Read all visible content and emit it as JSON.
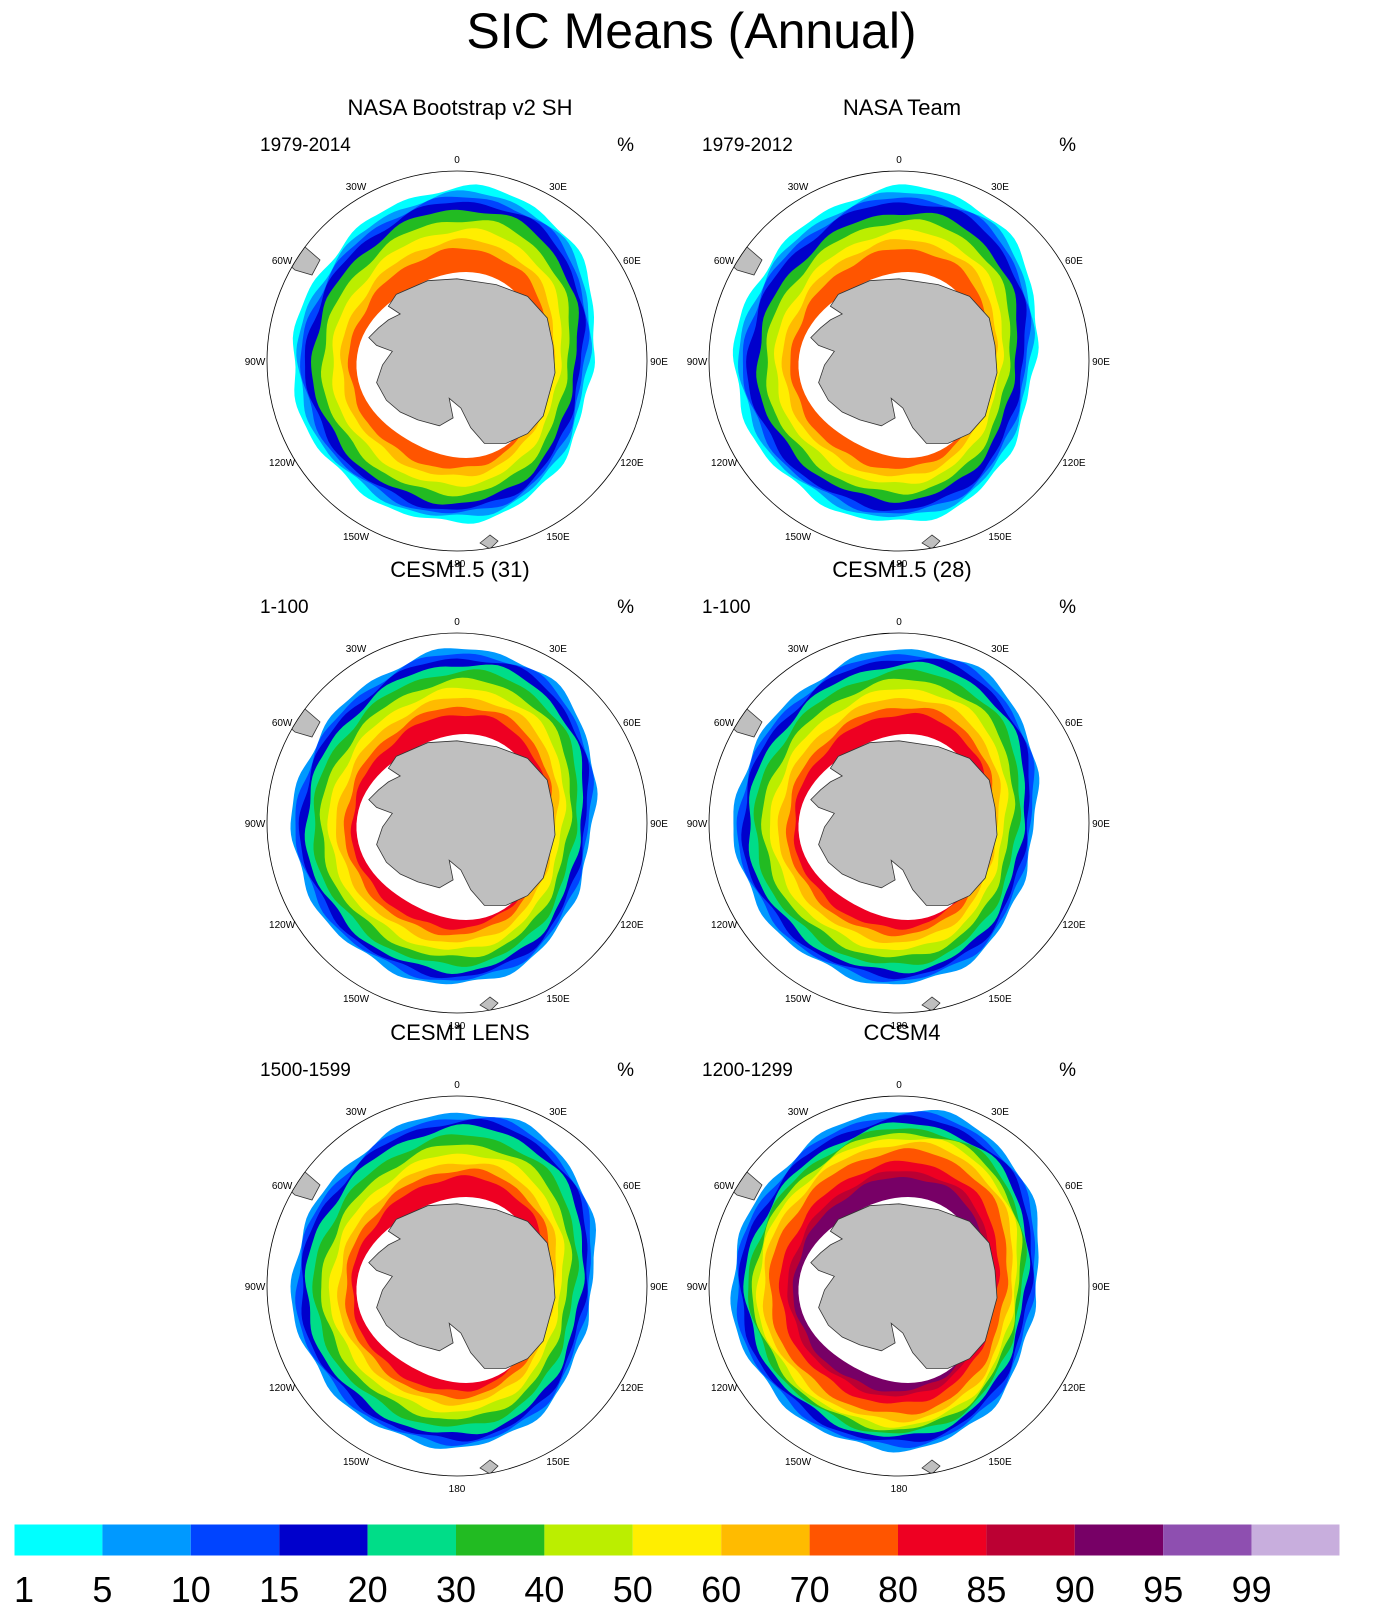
{
  "title": "SIC Means (Annual)",
  "units": "%",
  "panels": [
    {
      "name": "NASA Bootstrap v2 SH",
      "period": "1979-2014"
    },
    {
      "name": "NASA Team",
      "period": "1979-2012"
    },
    {
      "name": "CESM1.5 (31)",
      "period": "1-100"
    },
    {
      "name": "CESM1.5 (28)",
      "period": "1-100"
    },
    {
      "name": "CESM1 LENS",
      "period": "1500-1599"
    },
    {
      "name": "CCSM4",
      "period": "1200-1299"
    }
  ],
  "longitude_labels": [
    "0",
    "30E",
    "60E",
    "90E",
    "120E",
    "150E",
    "180",
    "150W",
    "120W",
    "90W",
    "60W",
    "30W"
  ],
  "colorbar": {
    "labels": [
      "1",
      "5",
      "10",
      "15",
      "20",
      "30",
      "40",
      "50",
      "60",
      "70",
      "80",
      "85",
      "90",
      "95",
      "99"
    ],
    "colors": [
      "#00ffff",
      "#0099ff",
      "#0044ff",
      "#0000cc",
      "#00dd88",
      "#22bb22",
      "#bbee00",
      "#ffee00",
      "#ffbb00",
      "#ff5500",
      "#ee0022",
      "#bb0033",
      "#770066",
      "#8e4fb0",
      "#c8aedd"
    ]
  },
  "land_color": "#bfbfbf"
}
